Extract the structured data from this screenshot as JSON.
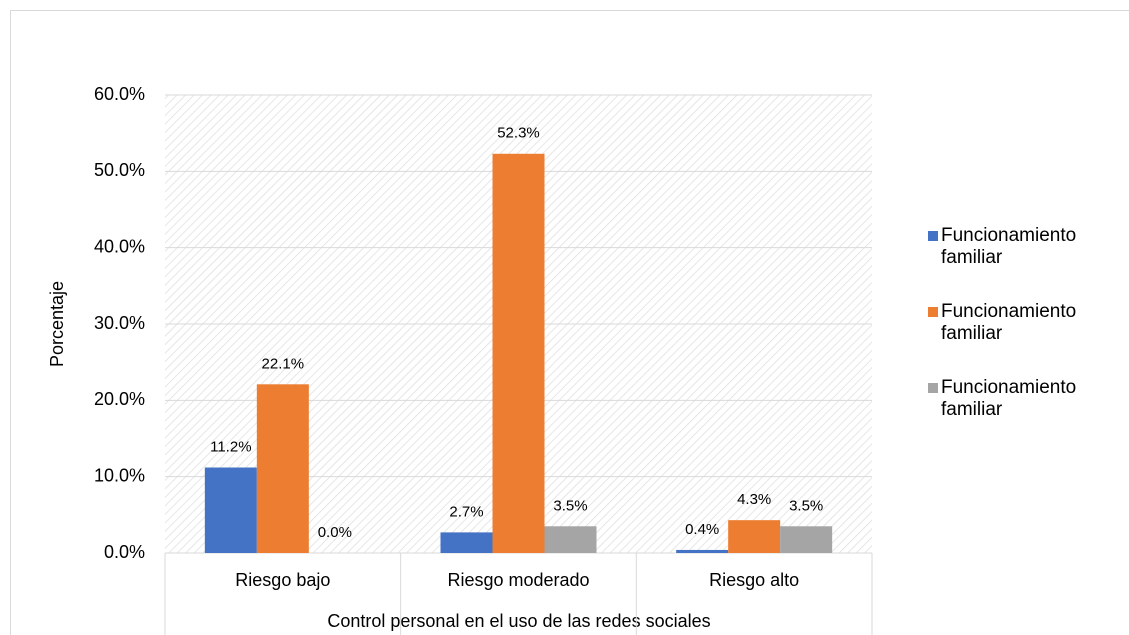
{
  "chart_data": {
    "type": "bar",
    "categories": [
      "Riesgo bajo",
      "Riesgo moderado",
      "Riesgo alto"
    ],
    "series": [
      {
        "name": "Funcionamiento familiar",
        "color": "#4472c4",
        "values": [
          11.2,
          2.7,
          0.4
        ],
        "value_labels": [
          "11.2%",
          "2.7%",
          "0.4%"
        ]
      },
      {
        "name": "Funcionamiento familiar",
        "color": "#ed7d31",
        "values": [
          22.1,
          52.3,
          4.3
        ],
        "value_labels": [
          "22.1%",
          "52.3%",
          "4.3%"
        ]
      },
      {
        "name": "Funcionamiento familiar",
        "color": "#a5a5a5",
        "values": [
          0.0,
          3.5,
          3.5
        ],
        "value_labels": [
          "0.0%",
          "3.5%",
          "3.5%"
        ]
      }
    ],
    "ylabel": "Porcentaje",
    "xlabel": "Control personal  en el uso de las redes sociales",
    "ylim": [
      0,
      60
    ],
    "yticks": [
      {
        "value": 0,
        "label": "0.0%"
      },
      {
        "value": 10,
        "label": "10.0%"
      },
      {
        "value": 20,
        "label": "20.0%"
      },
      {
        "value": 30,
        "label": "30.0%"
      },
      {
        "value": 40,
        "label": "40.0%"
      },
      {
        "value": 50,
        "label": "50.0%"
      },
      {
        "value": 60,
        "label": "60.0%"
      }
    ],
    "grid": true,
    "legend": "right"
  }
}
